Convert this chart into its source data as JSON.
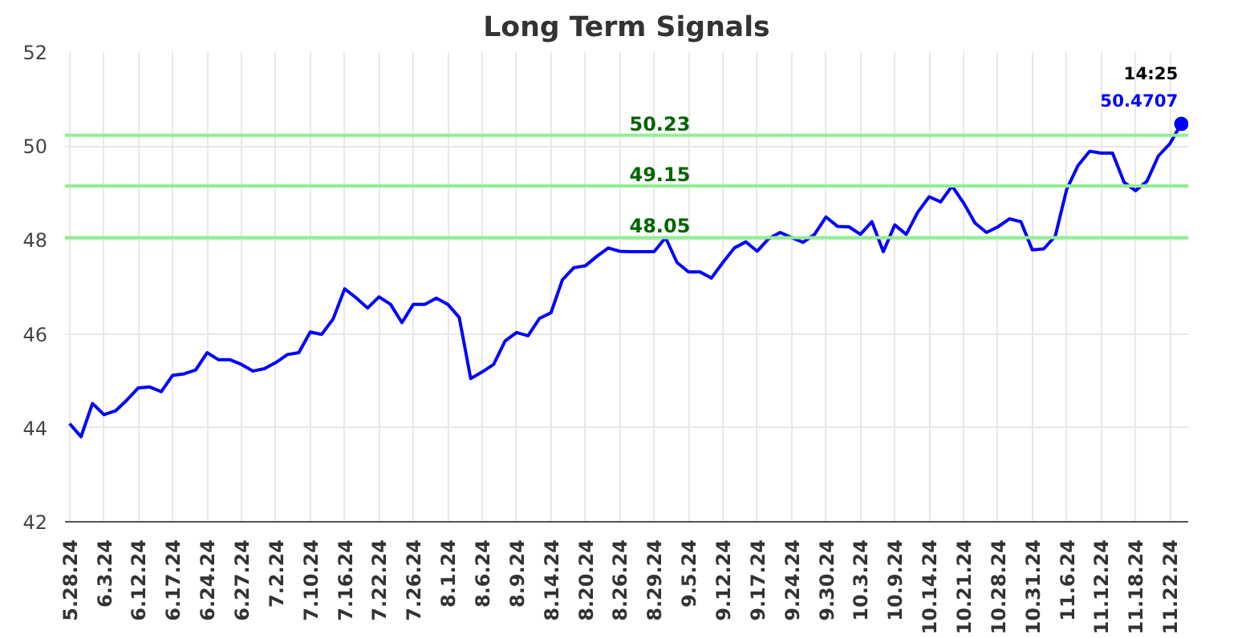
{
  "chart_data": {
    "type": "line",
    "title": "Long Term Signals",
    "categories": [
      "5.28.24",
      null,
      null,
      "6.3.24",
      null,
      null,
      "6.12.24",
      null,
      null,
      "6.17.24",
      null,
      null,
      "6.24.24",
      null,
      null,
      "6.27.24",
      null,
      null,
      "7.2.24",
      null,
      null,
      "7.10.24",
      null,
      null,
      "7.16.24",
      null,
      null,
      "7.22.24",
      null,
      null,
      "7.26.24",
      null,
      null,
      "8.1.24",
      null,
      null,
      "8.6.24",
      null,
      null,
      "8.9.24",
      null,
      null,
      "8.14.24",
      null,
      null,
      "8.20.24",
      null,
      null,
      "8.26.24",
      null,
      null,
      "8.29.24",
      null,
      null,
      "9.5.24",
      null,
      null,
      "9.12.24",
      null,
      null,
      "9.17.24",
      null,
      null,
      "9.24.24",
      null,
      null,
      "9.30.24",
      null,
      null,
      "10.3.24",
      null,
      null,
      "10.9.24",
      null,
      null,
      "10.14.24",
      null,
      null,
      "10.21.24",
      null,
      null,
      "10.28.24",
      null,
      null,
      "10.31.24",
      null,
      null,
      "11.6.24",
      null,
      null,
      "11.12.24",
      null,
      null,
      "11.18.24",
      null,
      null,
      "11.22.24",
      null
    ],
    "series": [
      {
        "color": "#0000ff",
        "values": [
          44.09,
          43.81,
          44.52,
          44.28,
          44.36,
          44.59,
          44.85,
          44.87,
          44.77,
          45.12,
          45.15,
          45.23,
          45.6,
          45.45,
          45.45,
          45.35,
          45.21,
          45.26,
          45.39,
          45.56,
          45.6,
          46.04,
          45.99,
          46.32,
          46.96,
          46.77,
          46.55,
          46.79,
          46.63,
          46.24,
          46.63,
          46.63,
          46.76,
          46.63,
          46.35,
          45.05,
          45.19,
          45.35,
          45.85,
          46.03,
          45.96,
          46.33,
          46.45,
          47.15,
          47.41,
          47.45,
          47.65,
          47.83,
          47.76,
          47.75,
          47.75,
          47.75,
          48.05,
          47.52,
          47.32,
          47.32,
          47.19,
          47.52,
          47.83,
          47.96,
          47.76,
          48.03,
          48.16,
          48.05,
          47.95,
          48.12,
          48.49,
          48.29,
          48.28,
          48.12,
          48.39,
          47.75,
          48.32,
          48.12,
          48.59,
          48.92,
          48.81,
          49.15,
          48.79,
          48.36,
          48.16,
          48.28,
          48.45,
          48.39,
          47.79,
          47.81,
          48.08,
          49.08,
          49.59,
          49.89,
          49.85,
          49.85,
          49.23,
          49.05,
          49.25,
          49.79,
          50.05,
          50.4707
        ]
      }
    ],
    "ylim": [
      42,
      52
    ],
    "yticks": [
      42,
      44,
      46,
      48,
      50,
      52
    ],
    "grid": true,
    "line_style": "solid",
    "ref_lines": [
      {
        "axis": "y",
        "value": 50.23,
        "label": "50.23",
        "color": "#90ee90"
      },
      {
        "axis": "y",
        "value": 49.15,
        "label": "49.15",
        "color": "#90ee90"
      },
      {
        "axis": "y",
        "value": 48.05,
        "label": "48.05",
        "color": "#90ee90"
      }
    ],
    "annotations": [
      "14:25",
      "50.4707"
    ]
  }
}
